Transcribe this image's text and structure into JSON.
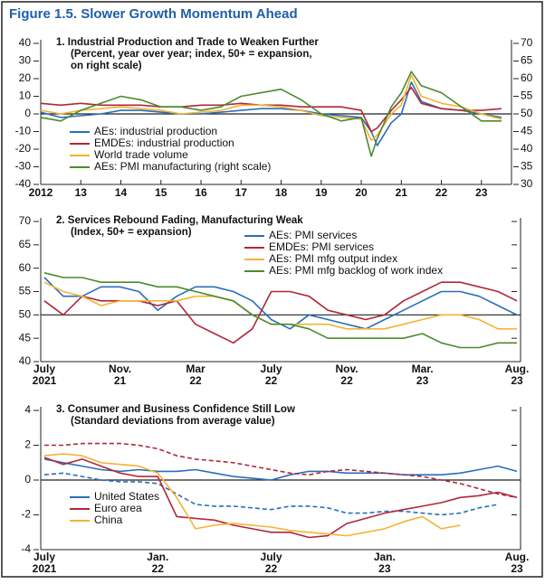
{
  "title": "Figure 1.5. Slower Growth Momentum Ahead",
  "chart_data": [
    {
      "type": "line",
      "title": "1. Industrial Production and Trade to Weaken Further",
      "subtitle": [
        "(Percent, year over year; index, 50+ = expansion,",
        "on right scale)"
      ],
      "x": [
        2012,
        2012.5,
        2013,
        2013.5,
        2014,
        2014.5,
        2015,
        2015.5,
        2016,
        2016.5,
        2017,
        2017.5,
        2018,
        2018.5,
        2019,
        2019.5,
        2020,
        2020.25,
        2020.4,
        2020.75,
        2021,
        2021.25,
        2021.5,
        2022,
        2022.5,
        2023,
        2023.5
      ],
      "xlim": [
        2012,
        2023.75
      ],
      "xticks": [
        2012,
        {
          "value": 2013,
          "label": "13"
        },
        {
          "value": 2014,
          "label": "14"
        },
        {
          "value": 2015,
          "label": "15"
        },
        {
          "value": 2016,
          "label": "16"
        },
        {
          "value": 2017,
          "label": "17"
        },
        {
          "value": 2018,
          "label": "18"
        },
        {
          "value": 2019,
          "label": "19"
        },
        {
          "value": 2020,
          "label": "20"
        },
        {
          "value": 2021,
          "label": "21"
        },
        {
          "value": 2022,
          "label": "22"
        },
        {
          "value": 2023,
          "label": "23"
        }
      ],
      "ylim": [
        -40,
        40
      ],
      "yticks": [
        -40,
        -30,
        -20,
        -10,
        0,
        10,
        20,
        30,
        40
      ],
      "y2lim": [
        30,
        70
      ],
      "y2ticks": [
        30,
        35,
        40,
        45,
        50,
        55,
        60,
        65,
        70
      ],
      "reference_line": 0,
      "legend": "lower-left",
      "series": [
        {
          "name": "AEs: industrial production",
          "color": "#2a6ebb",
          "values": [
            1,
            -2,
            -1,
            0,
            2,
            2,
            1,
            0,
            0,
            1,
            2,
            3,
            3,
            2,
            0,
            -1,
            -2,
            -10,
            -18,
            -5,
            0,
            18,
            7,
            3,
            2,
            0,
            -2
          ]
        },
        {
          "name": "EMDEs: industrial production",
          "color": "#b0283a",
          "values": [
            6,
            5,
            6,
            5,
            5,
            5,
            4,
            4,
            5,
            5,
            6,
            5,
            5,
            4,
            4,
            4,
            2,
            -10,
            -8,
            2,
            8,
            15,
            6,
            3,
            2,
            2,
            3
          ]
        },
        {
          "name": "World trade volume",
          "color": "#f5b335",
          "values": [
            2,
            0,
            2,
            3,
            4,
            3,
            2,
            0,
            1,
            2,
            5,
            5,
            4,
            2,
            -1,
            -2,
            -3,
            -15,
            -12,
            0,
            5,
            22,
            10,
            6,
            4,
            0,
            -3
          ]
        },
        {
          "name": "AEs: PMI manufacturing (right scale)",
          "color": "#4c8a2f",
          "axis": "y2",
          "values": [
            49,
            48,
            51,
            53,
            55,
            54,
            52,
            52,
            51,
            52,
            55,
            56,
            57,
            54,
            50,
            48,
            49,
            38,
            43,
            52,
            56,
            62,
            58,
            56,
            52,
            48,
            48
          ]
        }
      ]
    },
    {
      "type": "line",
      "title": "2. Services Rebound Fading, Manufacturing Weak",
      "subtitle": [
        "(Index, 50+ = expansion)"
      ],
      "categories": [
        "July\n2021",
        null,
        null,
        null,
        "Nov.\n21",
        null,
        null,
        null,
        "Mar\n22",
        null,
        null,
        null,
        "July\n22",
        null,
        null,
        null,
        "Nov.\n22",
        null,
        null,
        null,
        "Mar.\n23",
        null,
        null,
        null,
        null,
        "Aug.\n23"
      ],
      "ylim": [
        40,
        70
      ],
      "yticks": [
        40,
        45,
        50,
        55,
        60,
        65,
        70
      ],
      "reference_line": 50,
      "legend": "upper-right",
      "series": [
        {
          "name": "AEs: PMI services",
          "color": "#2a6ebb",
          "values": [
            58,
            54,
            54,
            56,
            56,
            55,
            51,
            54,
            56,
            56,
            55,
            53,
            49,
            47,
            50,
            49,
            48,
            47,
            49,
            51,
            53,
            55,
            55,
            54,
            52,
            50
          ]
        },
        {
          "name": "EMDEs: PMI services",
          "color": "#b0283a",
          "values": [
            53,
            50,
            54,
            53,
            53,
            53,
            52,
            53,
            48,
            46,
            44,
            47,
            55,
            55,
            54,
            51,
            50,
            49,
            50,
            53,
            55,
            57,
            57,
            56,
            55,
            53
          ]
        },
        {
          "name": "AEs: PMI mfg output index",
          "color": "#f5b335",
          "values": [
            57,
            55,
            54,
            52,
            53,
            53,
            53,
            53,
            54,
            54,
            53,
            50,
            48,
            48,
            48,
            48,
            47,
            47,
            47,
            48,
            49,
            50,
            50,
            49,
            47,
            47
          ]
        },
        {
          "name": "AEs: PMI mfg backlog of work index",
          "color": "#4c8a2f",
          "values": [
            59,
            58,
            58,
            57,
            57,
            57,
            56,
            56,
            55,
            54,
            53,
            50,
            48,
            48,
            47,
            45,
            45,
            45,
            45,
            45,
            46,
            44,
            43,
            43,
            44,
            44
          ]
        }
      ]
    },
    {
      "type": "line",
      "title": "3. Consumer and Business Confidence Still Low",
      "subtitle": [
        "(Standard deviations from average value)"
      ],
      "categories": [
        "July\n2021",
        null,
        null,
        null,
        null,
        null,
        "Jan.\n22",
        null,
        null,
        null,
        null,
        null,
        "July\n22",
        null,
        null,
        null,
        null,
        null,
        "Jan.\n23",
        null,
        null,
        null,
        null,
        null,
        null,
        "Aug.\n23"
      ],
      "ylim": [
        -4,
        4
      ],
      "yticks": [
        -4,
        -2,
        0,
        2,
        4
      ],
      "reference_line": 0,
      "legend": "lower-left",
      "series": [
        {
          "name": "United States",
          "color": "#2a6ebb",
          "lines": [
            {
              "dashed": false,
              "values": [
                1.2,
                1.0,
                0.8,
                0.6,
                0.5,
                0.6,
                0.5,
                0.5,
                0.6,
                0.4,
                0.2,
                0.1,
                0.0,
                0.3,
                0.5,
                0.5,
                0.4,
                0.4,
                0.4,
                0.3,
                0.3,
                0.3,
                0.4,
                0.6,
                0.8,
                0.5
              ]
            },
            {
              "dashed": true,
              "values": [
                0.3,
                0.4,
                0.2,
                0.0,
                -0.1,
                -0.1,
                -0.2,
                -0.8,
                -1.4,
                -1.5,
                -1.5,
                -1.6,
                -1.7,
                -1.5,
                -1.5,
                -1.6,
                -1.9,
                -1.9,
                -1.8,
                -1.8,
                -1.9,
                -2.0,
                -1.9,
                -1.6,
                -1.4,
                null
              ]
            }
          ]
        },
        {
          "name": "Euro area",
          "color": "#b0283a",
          "lines": [
            {
              "dashed": false,
              "values": [
                1.3,
                0.9,
                1.2,
                0.8,
                0.4,
                0.2,
                0.2,
                -2.1,
                -2.2,
                -2.3,
                -2.6,
                -2.8,
                -3.0,
                -3.0,
                -3.3,
                -3.2,
                -2.5,
                -2.2,
                -1.9,
                -1.7,
                -1.5,
                -1.3,
                -1.0,
                -0.9,
                -0.7,
                -1.0
              ]
            },
            {
              "dashed": true,
              "values": [
                2.0,
                2.0,
                2.1,
                2.1,
                2.1,
                2.0,
                1.8,
                1.4,
                1.2,
                1.1,
                1.0,
                0.8,
                0.6,
                0.4,
                0.3,
                0.5,
                0.6,
                0.5,
                0.4,
                0.3,
                0.2,
                0.0,
                -0.2,
                -0.5,
                -0.8,
                -1.0
              ]
            }
          ]
        },
        {
          "name": "China",
          "color": "#f5b335",
          "lines": [
            {
              "dashed": false,
              "values": [
                1.4,
                1.5,
                1.4,
                1.0,
                0.9,
                0.8,
                0.4,
                -1.0,
                -2.8,
                -2.6,
                -2.5,
                -2.6,
                -2.7,
                -2.9,
                -3.0,
                -3.1,
                -3.2,
                -3.0,
                -2.8,
                -2.4,
                -2.1,
                -2.8,
                -2.6,
                null,
                null,
                null
              ]
            }
          ]
        }
      ]
    }
  ]
}
